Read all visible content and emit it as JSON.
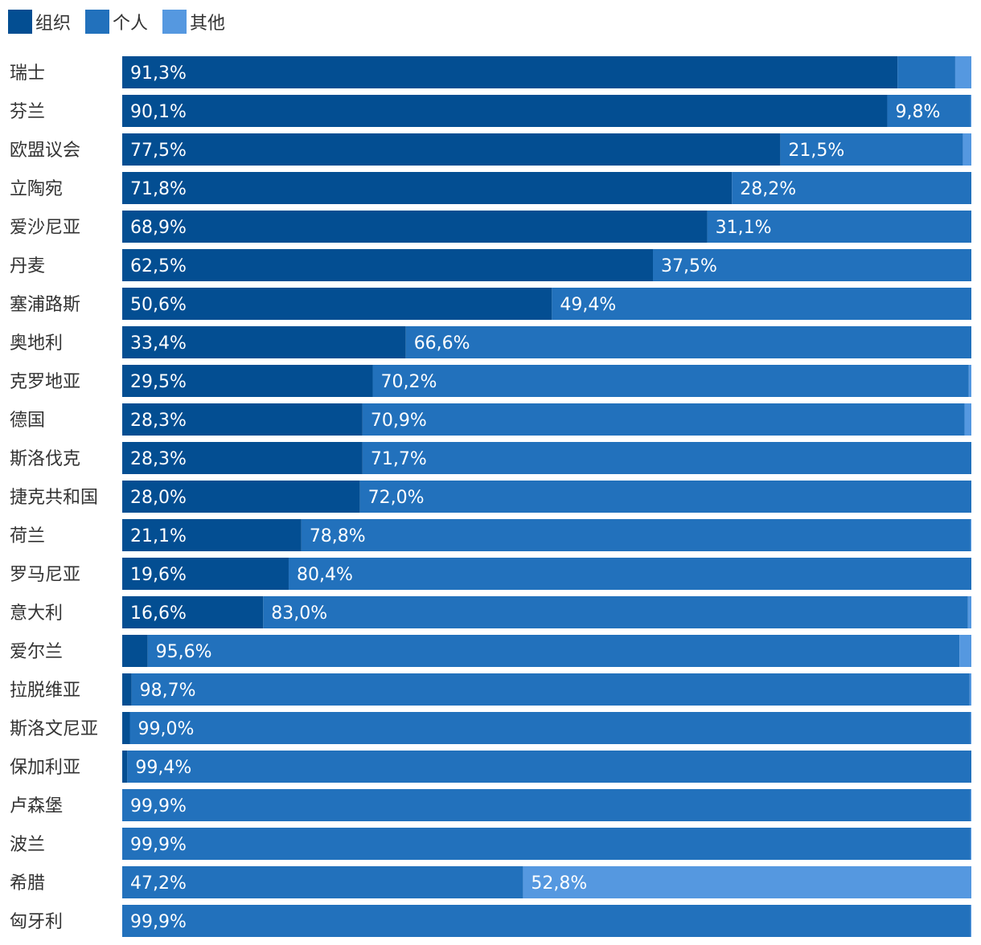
{
  "colors": {
    "org": "#034E92",
    "ind": "#2271BC",
    "other": "#5598E0",
    "label": "#333333",
    "value": "#ffffff"
  },
  "legend": [
    {
      "name": "组织",
      "color": "#034E92"
    },
    {
      "name": "个人",
      "color": "#2271BC"
    },
    {
      "name": "其他",
      "color": "#5598E0"
    }
  ],
  "chart_data": {
    "type": "bar",
    "orientation": "horizontal",
    "stacked": true,
    "title": "",
    "xlabel": "",
    "ylabel": "",
    "xlim": [
      0,
      100
    ],
    "legend_position": "top-left",
    "categories": [
      "瑞士",
      "芬兰",
      "欧盟议会",
      "立陶宛",
      "爱沙尼亚",
      "丹麦",
      "塞浦路斯",
      "奥地利",
      "克罗地亚",
      "德国",
      "斯洛伐克",
      "捷克共和国",
      "荷兰",
      "罗马尼亚",
      "意大利",
      "爱尔兰",
      "拉脱维亚",
      "斯洛文尼亚",
      "保加利亚",
      "卢森堡",
      "波兰",
      "希腊",
      "匈牙利"
    ],
    "series": [
      {
        "name": "组织",
        "values": [
          91.3,
          90.1,
          77.5,
          71.8,
          68.9,
          62.5,
          50.6,
          33.4,
          29.5,
          28.3,
          28.3,
          28.0,
          21.1,
          19.6,
          16.6,
          3.0,
          1.1,
          0.9,
          0.6,
          0,
          0,
          0,
          0
        ],
        "labels": [
          "91,3%",
          "90,1%",
          "77,5%",
          "71,8%",
          "68,9%",
          "62,5%",
          "50,6%",
          "33,4%",
          "29,5%",
          "28,3%",
          "28,3%",
          "28,0%",
          "21,1%",
          "19,6%",
          "16,6%",
          "",
          "",
          "",
          "",
          "",
          "",
          "",
          ""
        ]
      },
      {
        "name": "个人",
        "values": [
          6.8,
          9.8,
          21.5,
          28.2,
          31.1,
          37.5,
          49.4,
          66.6,
          70.2,
          70.9,
          71.7,
          72.0,
          78.8,
          80.4,
          83.0,
          95.6,
          98.7,
          99.0,
          99.4,
          99.9,
          99.9,
          47.2,
          99.9
        ],
        "labels": [
          "",
          "9,8%",
          "21,5%",
          "28,2%",
          "31,1%",
          "37,5%",
          "49,4%",
          "66,6%",
          "70,2%",
          "70,9%",
          "71,7%",
          "72,0%",
          "78,8%",
          "80,4%",
          "83,0%",
          "95,6%",
          "98,7%",
          "99,0%",
          "99,4%",
          "99,9%",
          "99,9%",
          "47,2%",
          "99,9%"
        ]
      },
      {
        "name": "其他",
        "values": [
          1.9,
          0.1,
          1.0,
          0,
          0,
          0,
          0,
          0,
          0.3,
          0.8,
          0,
          0,
          0.1,
          0,
          0.4,
          1.4,
          0.2,
          0.1,
          0,
          0.1,
          0.1,
          52.8,
          0.1
        ],
        "labels": [
          "",
          "",
          "",
          "",
          "",
          "",
          "",
          "",
          "",
          "",
          "",
          "",
          "",
          "",
          "",
          "",
          "",
          "",
          "",
          "",
          "",
          "52,8%",
          ""
        ]
      }
    ]
  }
}
